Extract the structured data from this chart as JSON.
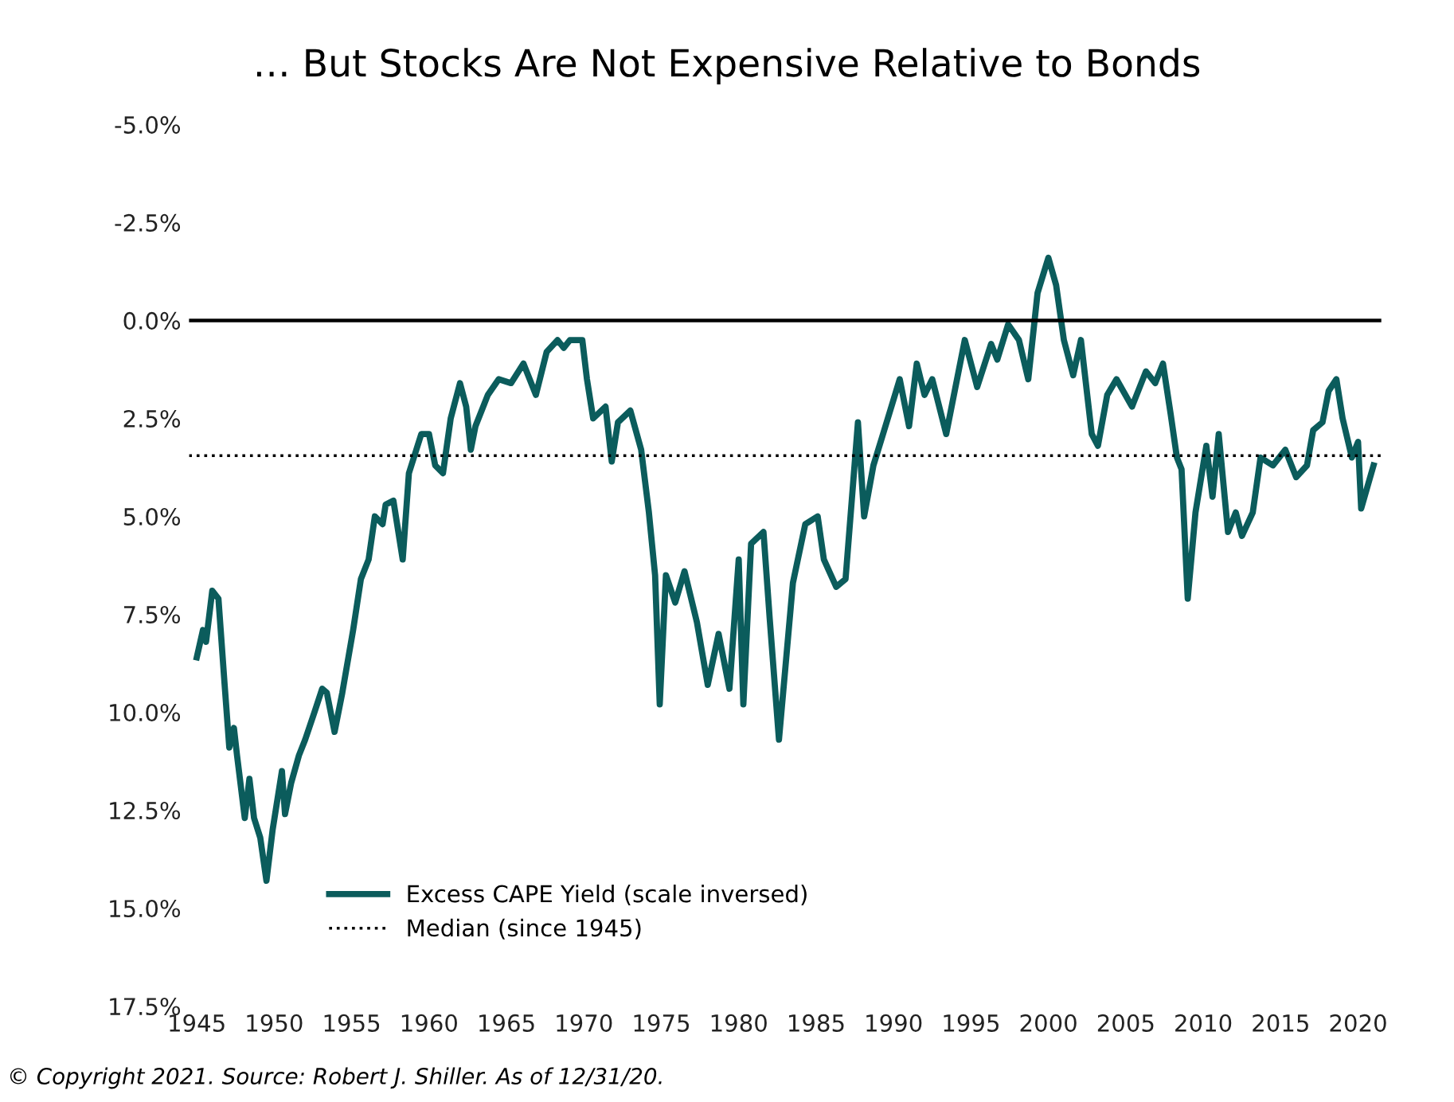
{
  "chart_data": {
    "type": "line",
    "title": "… But Stocks Are Not Expensive Relative to Bonds",
    "annotations": [
      "© Copyright 2021. Source: Robert J. Shiller. As of 12/31/20."
    ],
    "series": [
      {
        "name": "Excess CAPE Yield (scale inversed)",
        "color": "#0b5c5c",
        "x": [
          1945.0,
          1945.4,
          1945.6,
          1946.0,
          1946.4,
          1946.8,
          1947.1,
          1947.4,
          1947.6,
          1948.1,
          1948.4,
          1948.7,
          1949.1,
          1949.5,
          1949.9,
          1950.5,
          1950.7,
          1951.1,
          1951.6,
          1952.0,
          1952.6,
          1953.1,
          1953.4,
          1953.9,
          1954.4,
          1955.1,
          1955.6,
          1956.1,
          1956.5,
          1957.0,
          1957.2,
          1957.7,
          1958.3,
          1958.7,
          1959.5,
          1960.0,
          1960.4,
          1960.9,
          1961.4,
          1962.0,
          1962.4,
          1962.7,
          1963.0,
          1963.8,
          1964.5,
          1965.3,
          1966.1,
          1966.9,
          1967.6,
          1968.3,
          1968.7,
          1969.1,
          1969.9,
          1970.2,
          1970.6,
          1971.4,
          1971.8,
          1972.2,
          1973.0,
          1973.7,
          1974.2,
          1974.6,
          1974.9,
          1975.3,
          1975.9,
          1976.5,
          1977.3,
          1978.0,
          1978.7,
          1979.4,
          1980.0,
          1980.3,
          1980.8,
          1981.6,
          1982.0,
          1982.6,
          1983.5,
          1984.3,
          1985.1,
          1985.5,
          1986.3,
          1986.9,
          1987.7,
          1988.1,
          1988.7,
          1989.4,
          1990.4,
          1991.0,
          1991.5,
          1992.0,
          1992.5,
          1993.4,
          1994.6,
          1995.4,
          1996.3,
          1996.7,
          1997.4,
          1998.1,
          1998.7,
          1999.3,
          2000.0,
          2000.5,
          2001.0,
          2001.6,
          2002.1,
          2002.8,
          2003.2,
          2003.8,
          2004.4,
          2005.4,
          2006.3,
          2006.9,
          2007.4,
          2007.9,
          2008.3,
          2008.6,
          2009.0,
          2009.5,
          2010.2,
          2010.6,
          2011.0,
          2011.6,
          2012.1,
          2012.5,
          2013.2,
          2013.7,
          2014.5,
          2015.3,
          2016.0,
          2016.7,
          2017.1,
          2017.7,
          2018.1,
          2018.6,
          2019.0,
          2019.6,
          2020.0,
          2020.2,
          2021.0
        ],
        "values": [
          8.6,
          7.9,
          8.2,
          6.9,
          7.1,
          9.3,
          10.9,
          10.4,
          11.1,
          12.7,
          11.7,
          12.7,
          13.2,
          14.3,
          13.0,
          11.5,
          12.6,
          11.8,
          11.1,
          10.7,
          10.0,
          9.4,
          9.5,
          10.5,
          9.5,
          7.9,
          6.6,
          6.1,
          5.0,
          5.2,
          4.7,
          4.6,
          6.1,
          3.9,
          2.9,
          2.9,
          3.7,
          3.9,
          2.5,
          1.6,
          2.2,
          3.3,
          2.7,
          1.9,
          1.5,
          1.6,
          1.1,
          1.9,
          0.8,
          0.5,
          0.7,
          0.5,
          0.5,
          1.5,
          2.5,
          2.2,
          3.6,
          2.6,
          2.3,
          3.3,
          4.9,
          6.5,
          9.8,
          6.5,
          7.2,
          6.4,
          7.7,
          9.3,
          8.0,
          9.4,
          6.1,
          9.8,
          5.7,
          5.4,
          7.6,
          10.7,
          6.7,
          5.2,
          5.0,
          6.1,
          6.8,
          6.6,
          2.6,
          5.0,
          3.7,
          2.8,
          1.5,
          2.7,
          1.1,
          1.9,
          1.5,
          2.9,
          0.5,
          1.7,
          0.6,
          1.0,
          0.1,
          0.5,
          1.5,
          -0.7,
          -1.6,
          -0.9,
          0.5,
          1.4,
          0.5,
          2.9,
          3.2,
          1.9,
          1.5,
          2.2,
          1.3,
          1.6,
          1.1,
          2.4,
          3.5,
          3.8,
          7.1,
          4.9,
          3.2,
          4.5,
          2.9,
          5.4,
          4.9,
          5.5,
          4.9,
          3.5,
          3.7,
          3.3,
          4.0,
          3.7,
          2.8,
          2.6,
          1.8,
          1.5,
          2.5,
          3.5,
          3.1,
          4.8,
          3.7
        ]
      }
    ],
    "ref_lines": [
      {
        "axis": "y",
        "value": 0.0,
        "color": "#000000",
        "line_style": "solid"
      },
      {
        "axis": "y",
        "value": 3.45,
        "label": "Median (since 1945)",
        "color": "#000000",
        "line_style": "dotted"
      }
    ],
    "xlim": [
      1944.5,
      2021.5
    ],
    "xticks": [
      1945,
      1950,
      1955,
      1960,
      1965,
      1970,
      1975,
      1980,
      1985,
      1990,
      1995,
      2000,
      2005,
      2010,
      2015,
      2020
    ],
    "ylim": [
      17.5,
      -5.0
    ],
    "yticks": [
      {
        "value": -5.0,
        "label": "-5.0%"
      },
      {
        "value": -2.5,
        "label": "-2.5%"
      },
      {
        "value": 0.0,
        "label": "0.0%"
      },
      {
        "value": 2.5,
        "label": "2.5%"
      },
      {
        "value": 5.0,
        "label": "5.0%"
      },
      {
        "value": 7.5,
        "label": "7.5%"
      },
      {
        "value": 10.0,
        "label": "10.0%"
      },
      {
        "value": 12.5,
        "label": "12.5%"
      },
      {
        "value": 15.0,
        "label": "15.0%"
      },
      {
        "value": 17.5,
        "label": "17.5%"
      }
    ],
    "grid": false,
    "legend": "bottom left",
    "line_style": "solid",
    "marker": "none"
  }
}
